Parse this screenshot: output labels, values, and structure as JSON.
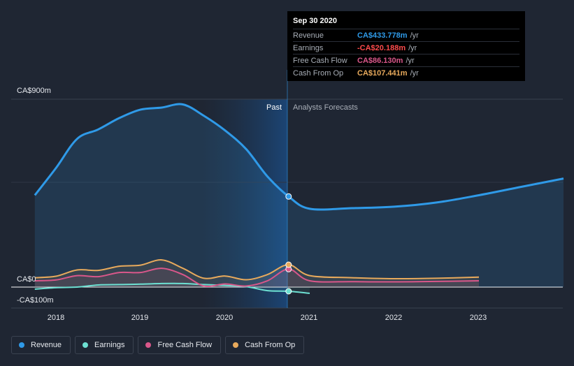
{
  "chart_data": {
    "type": "area",
    "x_ticks": [
      "2018",
      "2019",
      "2020",
      "2021",
      "2022",
      "2023"
    ],
    "y_labels": [
      "CA$900m",
      "CA$0",
      "-CA$100m"
    ],
    "ylim": [
      -100,
      900
    ],
    "past_label": "Past",
    "forecast_label": "Analysts Forecasts",
    "divider_x": 2020.75,
    "series": [
      {
        "name": "Revenue",
        "color": "#2f9ae8",
        "x": [
          2017.75,
          2018.0,
          2018.25,
          2018.5,
          2018.75,
          2019.0,
          2019.25,
          2019.5,
          2019.75,
          2020.0,
          2020.25,
          2020.5,
          2020.75,
          2021.0,
          2021.5,
          2022.0,
          2022.5,
          2023.0,
          2023.5,
          2024.0
        ],
        "y": [
          440,
          570,
          710,
          755,
          810,
          850,
          860,
          875,
          820,
          750,
          660,
          530,
          434,
          375,
          378,
          385,
          405,
          440,
          480,
          520
        ]
      },
      {
        "name": "Earnings",
        "color": "#6de0d2",
        "x": [
          2017.75,
          2018.0,
          2018.25,
          2018.5,
          2018.75,
          2019.0,
          2019.25,
          2019.5,
          2019.75,
          2020.0,
          2020.25,
          2020.5,
          2020.75,
          2021.0
        ],
        "y": [
          -10,
          -3,
          0,
          10,
          12,
          14,
          17,
          17,
          12,
          8,
          2,
          -17,
          -20,
          -30
        ]
      },
      {
        "name": "Free Cash Flow",
        "color": "#d9578a",
        "x": [
          2017.75,
          2018.0,
          2018.25,
          2018.5,
          2018.75,
          2019.0,
          2019.25,
          2019.5,
          2019.75,
          2020.0,
          2020.25,
          2020.5,
          2020.75,
          2021.0,
          2021.5,
          2022.0,
          2022.5,
          2023.0
        ],
        "y": [
          30,
          34,
          55,
          50,
          70,
          70,
          90,
          60,
          5,
          15,
          5,
          30,
          86,
          30,
          26,
          25,
          27,
          30
        ]
      },
      {
        "name": "Cash From Op",
        "color": "#e8aa5c",
        "x": [
          2017.75,
          2018.0,
          2018.25,
          2018.5,
          2018.75,
          2019.0,
          2019.25,
          2019.5,
          2019.75,
          2020.0,
          2020.25,
          2020.5,
          2020.75,
          2021.0,
          2021.5,
          2022.0,
          2022.5,
          2023.0
        ],
        "y": [
          45,
          52,
          82,
          80,
          100,
          105,
          130,
          90,
          42,
          53,
          35,
          60,
          107,
          55,
          45,
          40,
          42,
          48
        ]
      }
    ]
  },
  "tooltip": {
    "date": "Sep 30 2020",
    "rows": [
      {
        "label": "Revenue",
        "value": "CA$433.778m",
        "unit": "/yr",
        "color": "#2f9ae8"
      },
      {
        "label": "Earnings",
        "value": "-CA$20.188m",
        "unit": "/yr",
        "color": "#ff4b4b"
      },
      {
        "label": "Free Cash Flow",
        "value": "CA$86.130m",
        "unit": "/yr",
        "color": "#d9578a"
      },
      {
        "label": "Cash From Op",
        "value": "CA$107.441m",
        "unit": "/yr",
        "color": "#e8aa5c"
      }
    ]
  },
  "legend": [
    {
      "label": "Revenue",
      "color": "#2f9ae8"
    },
    {
      "label": "Earnings",
      "color": "#6de0d2"
    },
    {
      "label": "Free Cash Flow",
      "color": "#d9578a"
    },
    {
      "label": "Cash From Op",
      "color": "#e8aa5c"
    }
  ]
}
